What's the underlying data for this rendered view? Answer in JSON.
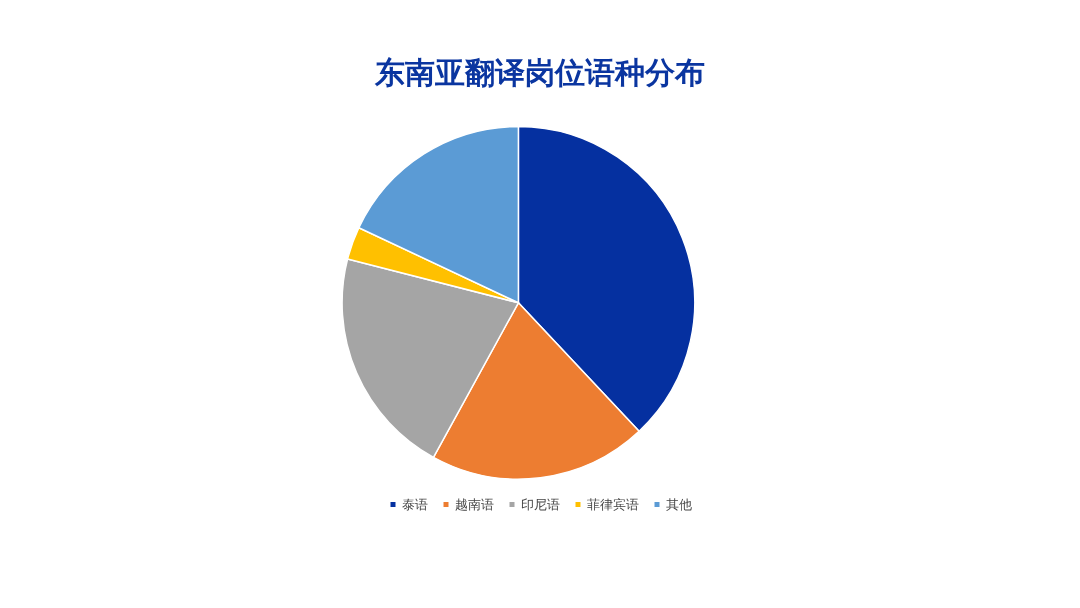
{
  "chart_data": {
    "type": "pie",
    "title": "东南亚翻译岗位语种分布",
    "categories": [
      "泰语",
      "越南语",
      "印尼语",
      "菲律宾语",
      "其他"
    ],
    "values": [
      38,
      20,
      21,
      3,
      18
    ],
    "colors": [
      "#0530a0",
      "#ed7d31",
      "#a5a5a5",
      "#ffc000",
      "#5b9bd5"
    ],
    "legend": "bottom"
  }
}
